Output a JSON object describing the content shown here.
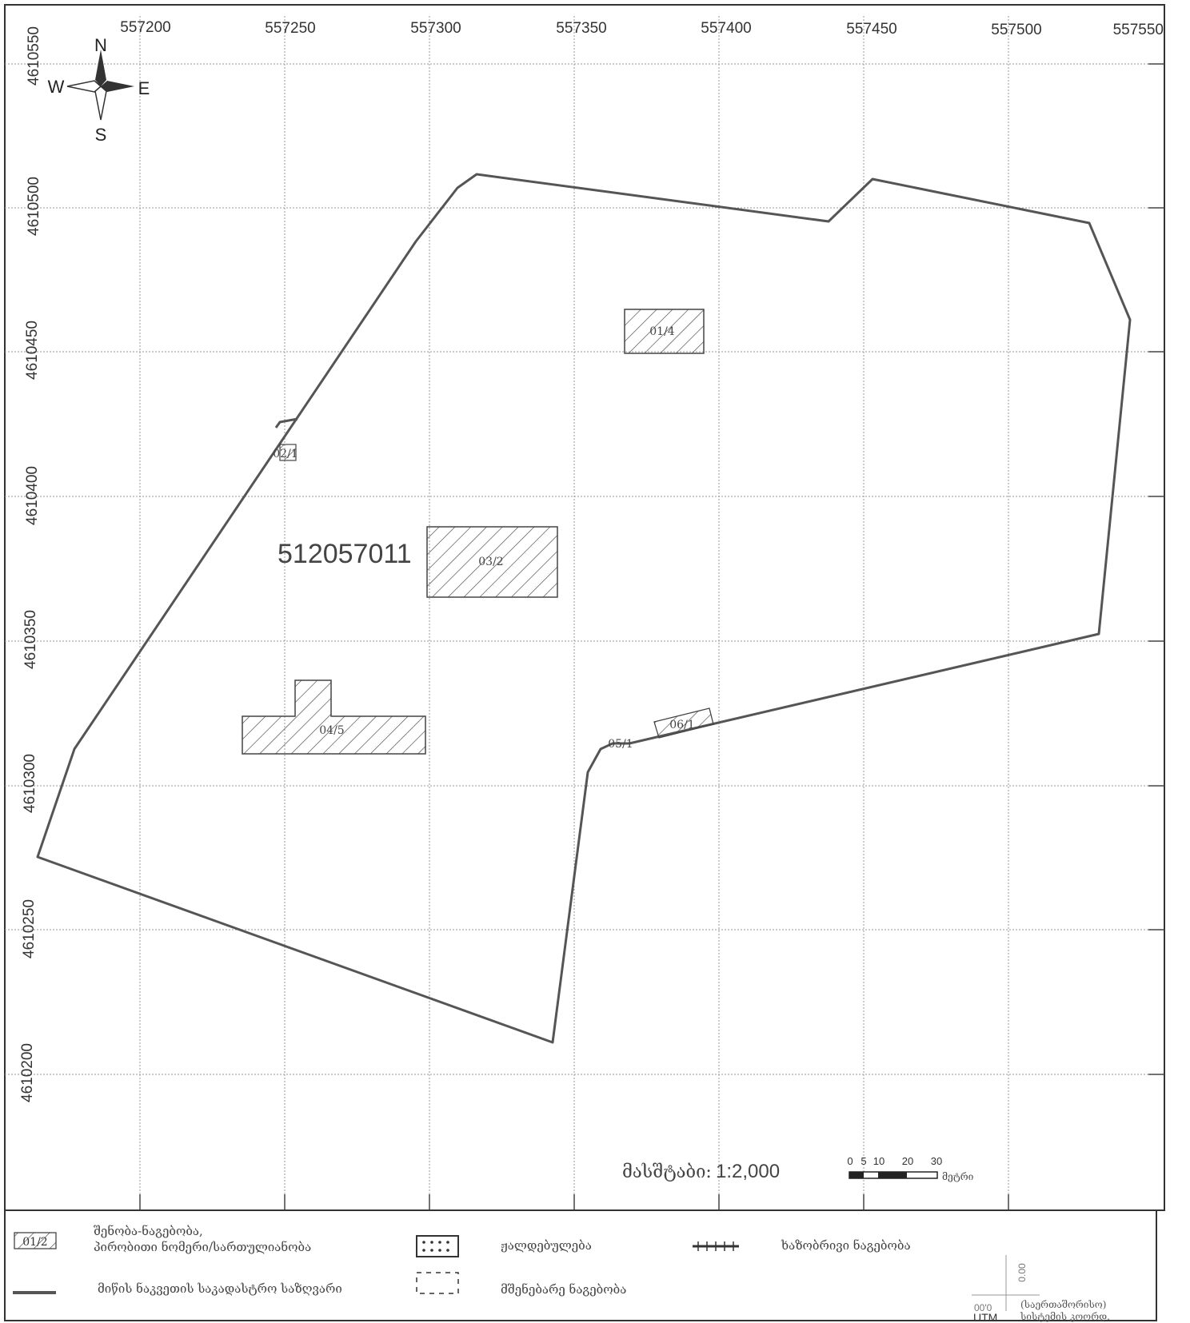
{
  "map": {
    "parcel_id": "512057011",
    "x_ticks": [
      "557200",
      "557250",
      "557300",
      "557350",
      "557400",
      "557450",
      "557500",
      "557550"
    ],
    "y_ticks": [
      "4610550",
      "4610500",
      "4610450",
      "4610400",
      "4610350",
      "4610300",
      "4610250",
      "4610200"
    ],
    "buildings": [
      {
        "label": "01/4"
      },
      {
        "label": "02/1"
      },
      {
        "label": "03/2"
      },
      {
        "label": "04/5"
      },
      {
        "label": "05/1"
      },
      {
        "label": "06/1"
      }
    ],
    "compass": {
      "n": "N",
      "s": "S",
      "e": "E",
      "w": "W"
    }
  },
  "scale": {
    "label": "მასშტაბი:",
    "value": "1:2,000",
    "ticks": [
      "0",
      "5",
      "10",
      "20",
      "30"
    ],
    "unit": "მეტრი"
  },
  "legend": {
    "building_sample": "01/2",
    "building_line1": "შენობა-ნაგებობა,",
    "building_line2": "პირობითი ნომერი/სართულიანობა",
    "boundary": "მიწის ნაკვეთის საკადასტრო საზღვარი",
    "ruins": "ჟალდებულება",
    "under_construction": "მშენებარე ნაგებობა",
    "linear": "ხაზობრივი ნაგებობა",
    "utm_label": "UTM",
    "utm_desc_line1": "(საერთაშორისო)",
    "utm_desc_line2": "სისტემის კოორდ.",
    "utm_value_v": "0.00",
    "utm_value_h": "00'0"
  }
}
